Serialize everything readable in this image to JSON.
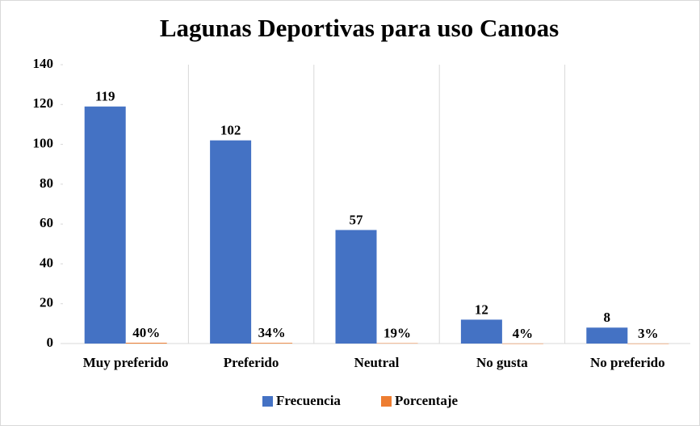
{
  "chart_data": {
    "type": "bar",
    "title": "Lagunas Deportivas para uso Canoas",
    "categories": [
      "Muy preferido",
      "Preferido",
      "Neutral",
      "No gusta",
      "No preferido"
    ],
    "series": [
      {
        "name": "Frecuencia",
        "color": "#4472c4",
        "values": [
          119,
          102,
          57,
          12,
          8
        ]
      },
      {
        "name": "Porcentaje",
        "color": "#ed7d31",
        "values": [
          0.4,
          0.34,
          0.19,
          0.04,
          0.03
        ],
        "value_labels": [
          "40%",
          "34%",
          "19%",
          "4%",
          "3%"
        ]
      }
    ],
    "ylim": [
      0,
      140
    ],
    "yticks": [
      0,
      20,
      40,
      60,
      80,
      100,
      120,
      140
    ],
    "legend": "bottom"
  }
}
